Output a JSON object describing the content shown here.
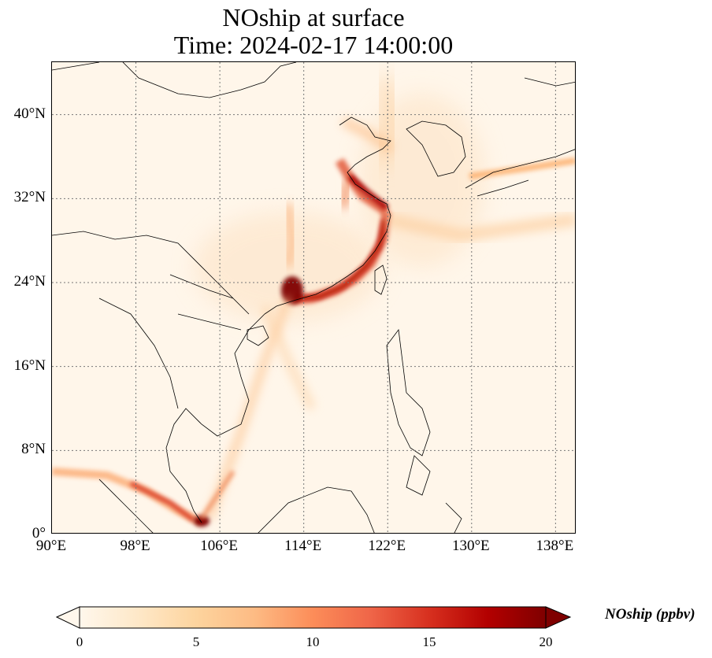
{
  "title": {
    "line1": "NOship at surface",
    "line2": "Time: 2024-02-17 14:00:00"
  },
  "map": {
    "projection": "PlateCarree",
    "extent_lon": [
      90,
      140
    ],
    "extent_lat": [
      0,
      45
    ],
    "gridlines": true,
    "gridline_style": "dotted",
    "region": "East Asia / South China Sea",
    "x_ticks": [
      "90°E",
      "98°E",
      "106°E",
      "114°E",
      "122°E",
      "130°E",
      "138°E"
    ],
    "x_tick_values": [
      90,
      98,
      106,
      114,
      122,
      130,
      138
    ],
    "y_ticks": [
      "0°",
      "8°N",
      "16°N",
      "24°N",
      "32°N",
      "40°N"
    ],
    "y_tick_values": [
      0,
      8,
      16,
      24,
      32,
      40
    ]
  },
  "colorbar": {
    "label": "NOship (ppbv)",
    "colormap": "OrRd",
    "min": 0,
    "max": 20,
    "extend": "both",
    "ticks": [
      "0",
      "5",
      "10",
      "15",
      "20"
    ],
    "tick_values": [
      0,
      5,
      10,
      15,
      20
    ],
    "colors": [
      "#fff7ec",
      "#fee8c8",
      "#fdd49e",
      "#fdbb84",
      "#fc8d59",
      "#ef6548",
      "#d7301f",
      "#b30000",
      "#7f0000"
    ]
  }
}
